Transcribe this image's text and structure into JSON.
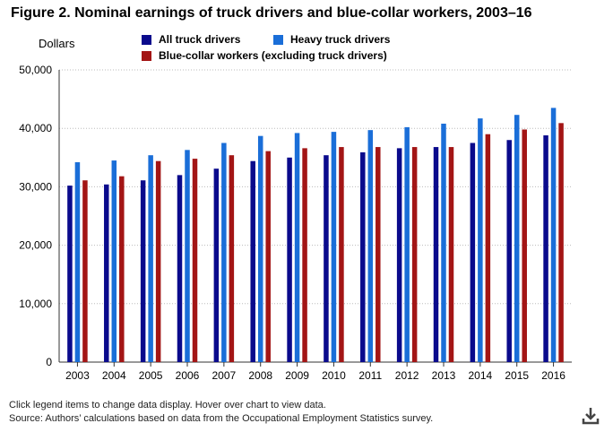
{
  "title": "Figure 2. Nominal earnings of truck drivers and blue-collar workers, 2003–16",
  "footer": {
    "note": "Click legend items to change data display. Hover over chart to view data.",
    "source": "Source: Authors’ calculations based on data from the Occupational Employment Statistics survey."
  },
  "download_icon": "download-icon",
  "chart_data": {
    "type": "bar",
    "title": "Figure 2. Nominal earnings of truck drivers and blue-collar workers, 2003–16",
    "ylabel": "Dollars",
    "xlabel": "",
    "ylim": [
      0,
      50000
    ],
    "yticks": [
      0,
      10000,
      20000,
      30000,
      40000,
      50000
    ],
    "ytick_labels": [
      "0",
      "10,000",
      "20,000",
      "30,000",
      "40,000",
      "50,000"
    ],
    "grid": "horizontal dotted",
    "legend_position": "top",
    "categories": [
      "2003",
      "2004",
      "2005",
      "2006",
      "2007",
      "2008",
      "2009",
      "2010",
      "2011",
      "2012",
      "2013",
      "2014",
      "2015",
      "2016"
    ],
    "series": [
      {
        "name": "All truck drivers",
        "color": "#0a0a8c",
        "values": [
          30200,
          30400,
          31100,
          32000,
          33100,
          34400,
          35000,
          35400,
          35900,
          36600,
          36800,
          37500,
          38000,
          38800
        ]
      },
      {
        "name": "Heavy truck drivers",
        "color": "#1a6ed8",
        "values": [
          34200,
          34500,
          35400,
          36300,
          37500,
          38700,
          39200,
          39400,
          39700,
          40200,
          40800,
          41700,
          42300,
          43500
        ]
      },
      {
        "name": "Blue-collar workers (excluding truck drivers)",
        "color": "#a31515",
        "values": [
          31100,
          31800,
          34400,
          34800,
          35400,
          36100,
          36600,
          36800,
          36800,
          36800,
          36800,
          39000,
          39800,
          40900
        ]
      }
    ]
  }
}
